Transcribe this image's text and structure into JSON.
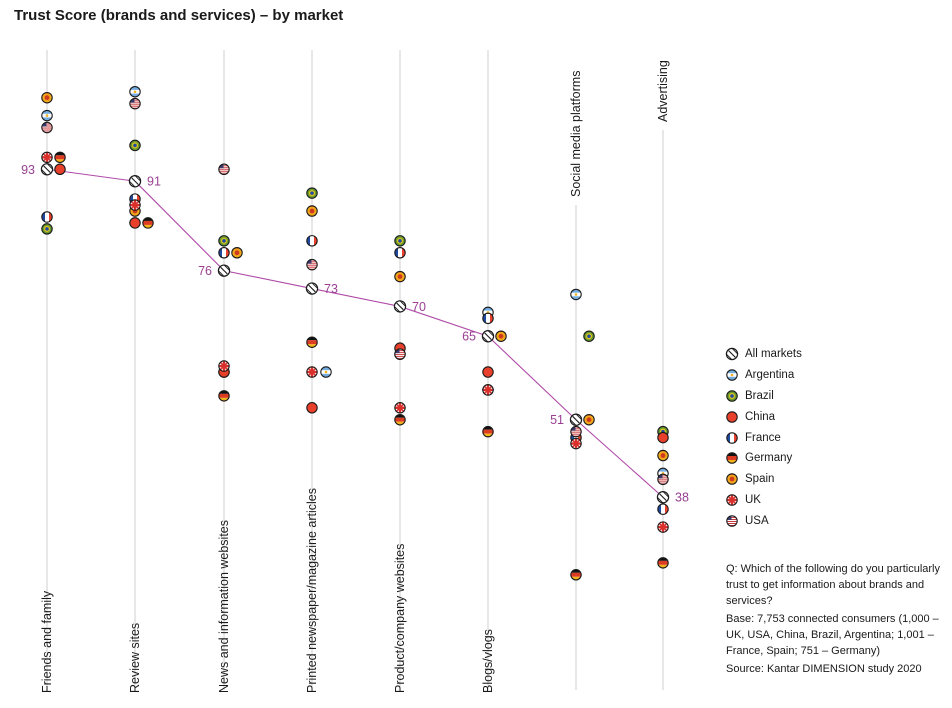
{
  "title": "Trust Score (brands and services) – by market",
  "chart_data": {
    "type": "scatter",
    "title": "Trust Score (brands and services) – by market",
    "categories": [
      "Friends and family",
      "Review sites",
      "News and information websites",
      "Printed newspaper/magazine articles",
      "Product/company websites",
      "Blogs/vlogs",
      "Social media platforms",
      "Advertising"
    ],
    "all_markets": [
      93,
      91,
      76,
      73,
      70,
      65,
      51,
      38
    ],
    "ylim": [
      4,
      113
    ],
    "series": [
      {
        "name": "Argentina",
        "icon": "argentina-flag-icon",
        "values": [
          102,
          106,
          59,
          59,
          62,
          69,
          72,
          42
        ]
      },
      {
        "name": "Brazil",
        "icon": "brazil-flag-icon",
        "values": [
          83,
          97,
          81,
          89,
          81,
          56,
          65,
          49
        ]
      },
      {
        "name": "China",
        "icon": "china-flag-icon",
        "values": [
          93,
          84,
          59,
          53,
          63,
          59,
          51,
          48
        ]
      },
      {
        "name": "France",
        "icon": "france-flag-icon",
        "values": [
          85,
          88,
          79,
          81,
          79,
          68,
          48,
          36
        ]
      },
      {
        "name": "Germany",
        "icon": "germany-flag-icon",
        "values": [
          95,
          84,
          55,
          64,
          51,
          49,
          25,
          27
        ]
      },
      {
        "name": "Spain",
        "icon": "spain-flag-icon",
        "values": [
          105,
          86,
          79,
          86,
          75,
          65,
          51,
          45
        ]
      },
      {
        "name": "UK",
        "icon": "uk-flag-icon",
        "values": [
          95,
          87,
          60,
          59,
          53,
          56,
          47,
          33
        ]
      },
      {
        "name": "USA",
        "icon": "usa-flag-icon",
        "values": [
          100,
          104,
          93,
          77,
          62,
          65,
          49,
          41
        ]
      }
    ]
  },
  "legend": {
    "all_markets": "All markets",
    "items": [
      "Argentina",
      "Brazil",
      "China",
      "France",
      "Germany",
      "Spain",
      "UK",
      "USA"
    ]
  },
  "note": {
    "question": "Q: Which of the following do you particularly trust to get information about brands and services?",
    "base": "Base: 7,753 connected consumers (1,000 – UK, USA, China, Brazil, Argentina; 1,001 – France, Spain; 751 – Germany)",
    "source": "Source: Kantar DIMENSION study 2020"
  },
  "colors": {
    "line": "#b04aa8",
    "label": "#9a3f93",
    "axis": "#cfcfcf",
    "argentina": "#74acdf",
    "brazil": "#6a9a2e",
    "brazil_inner": "#e6c619",
    "china": "#e8402a",
    "france_blue": "#1f4aa0",
    "france_red": "#e8402a",
    "germany_red": "#dd3b22",
    "germany_gold": "#f2b21a",
    "spain_red": "#cf3a1e",
    "spain_gold": "#f2a81a",
    "uk_red": "#d9302c",
    "uk_blue": "#3c4e9a",
    "usa_red": "#c8383a",
    "usa_blue": "#3c3b6e"
  }
}
